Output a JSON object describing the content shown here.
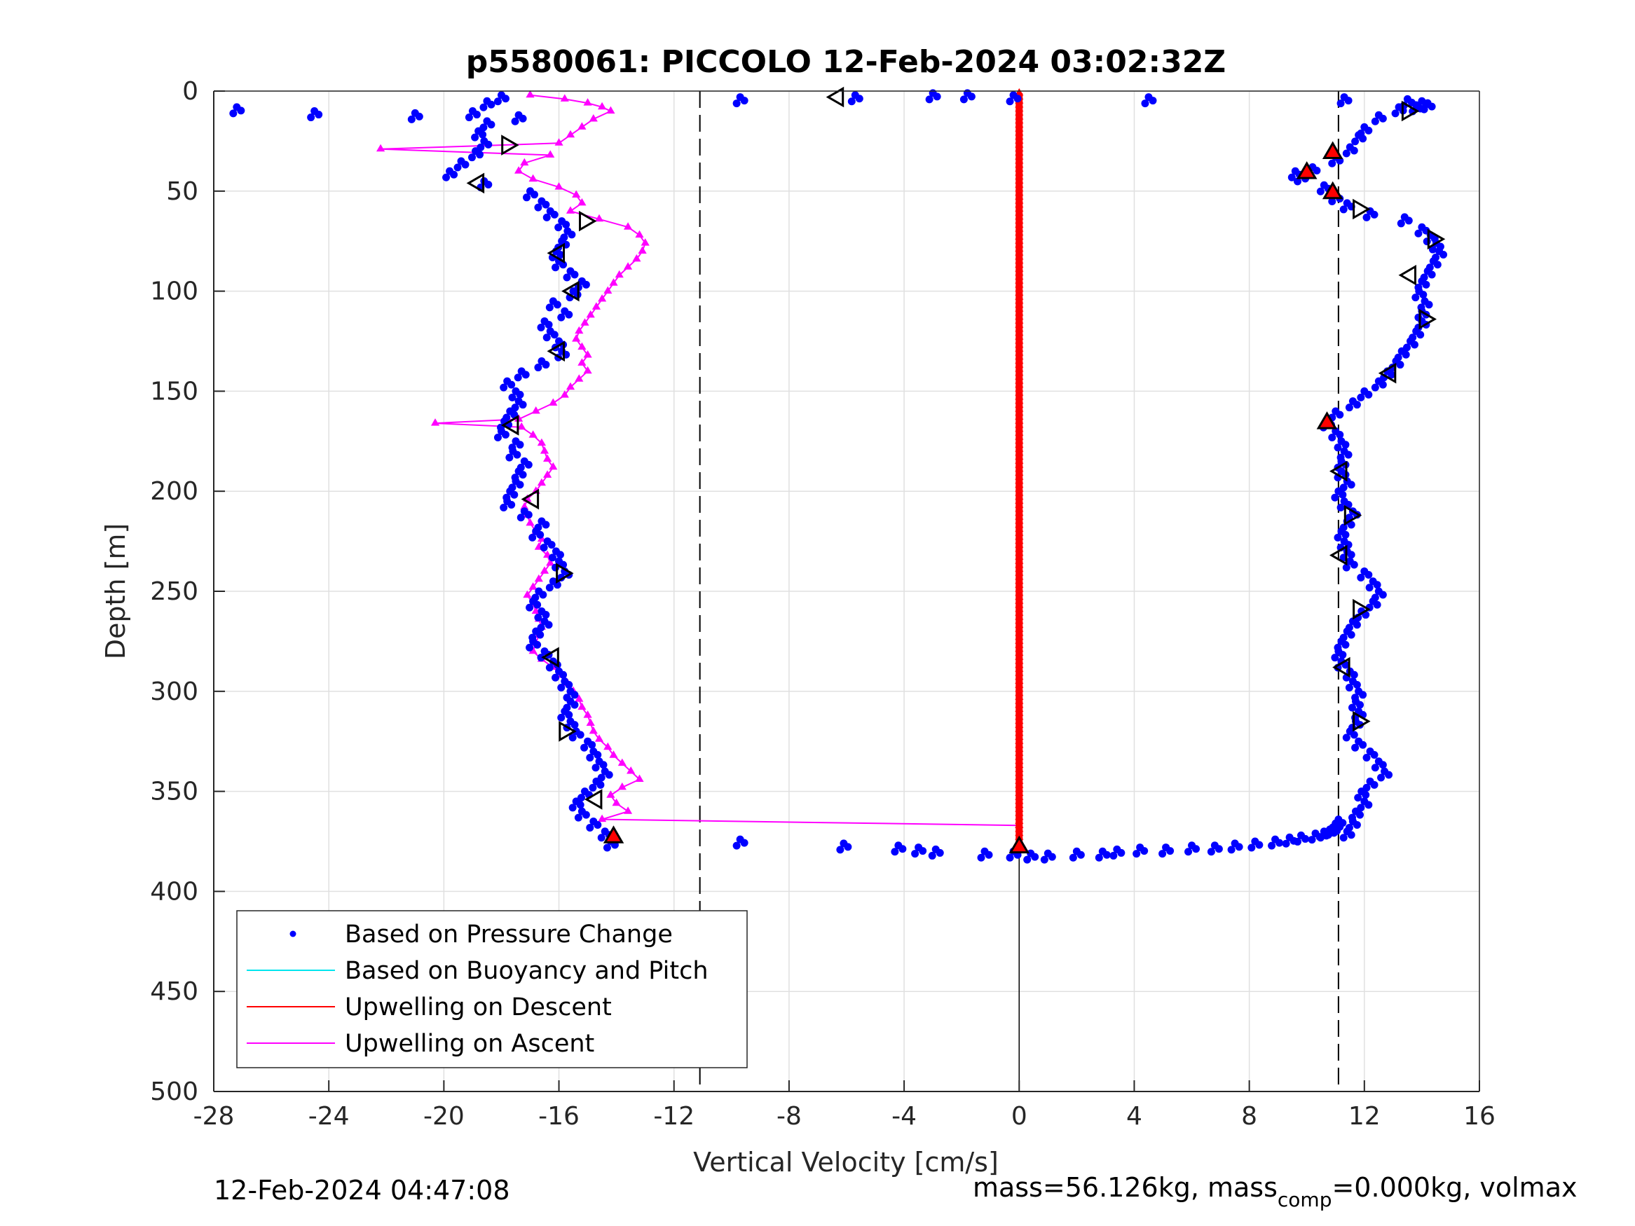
{
  "chart_data": {
    "type": "scatter",
    "title": "p5580061: PICCOLO 12-Feb-2024 03:02:32Z",
    "xlabel": "Vertical Velocity [cm/s]",
    "ylabel": "Depth [m]",
    "xlim": [
      -28,
      16
    ],
    "ylim": [
      0,
      500
    ],
    "y_reversed": true,
    "grid": true,
    "x_ticks": [
      -28,
      -24,
      -20,
      -16,
      -12,
      -8,
      -4,
      0,
      4,
      8,
      12,
      16
    ],
    "y_ticks": [
      0,
      50,
      100,
      150,
      200,
      250,
      300,
      350,
      400,
      450,
      500
    ],
    "x_tick_labels": [
      "-28",
      "-24",
      "-20",
      "-16",
      "-12",
      "-8",
      "-4",
      "0",
      "4",
      "8",
      "12",
      "16"
    ],
    "y_tick_labels": [
      "0",
      "50",
      "100",
      "150",
      "200",
      "250",
      "300",
      "350",
      "400",
      "450",
      "500"
    ],
    "legend_position": "bottom-left",
    "legend": [
      {
        "label": "Based on Pressure Change",
        "color": "#0000ff",
        "style": "dot"
      },
      {
        "label": "Based on Buoyancy and Pitch",
        "color": "#00e5ee",
        "style": "line"
      },
      {
        "label": "Upwelling on Descent",
        "color": "#ff0000",
        "style": "line"
      },
      {
        "label": "Upwelling on Ascent",
        "color": "#ff00ff",
        "style": "line"
      }
    ],
    "dashed_lines_x": [
      -11.1,
      11.1
    ],
    "zero_line_x": 0,
    "series": [
      {
        "name": "Based on Pressure Change",
        "color": "#0000ff",
        "marker": "dot",
        "branches": [
          {
            "depth": [
              5,
              10,
              15,
              20,
              25,
              30,
              35,
              40,
              45,
              50,
              55,
              60,
              65,
              70,
              75,
              80,
              85,
              90,
              95,
              100,
              105,
              110,
              115,
              120,
              125,
              130,
              135,
              140,
              145,
              150,
              155,
              160,
              165,
              170,
              175,
              180,
              185,
              190,
              195,
              200,
              205,
              210,
              215,
              220,
              225,
              230,
              235,
              240,
              245,
              250,
              255,
              260,
              265,
              270,
              275,
              280,
              285,
              290,
              295,
              300,
              305,
              310,
              315,
              320,
              325,
              330,
              335,
              340,
              345,
              350,
              355,
              360,
              365,
              370,
              375
            ],
            "velocity": [
              -18.5,
              -19.0,
              -18.5,
              -18.8,
              -18.6,
              -18.9,
              -19.4,
              -19.8,
              -18.6,
              -17.0,
              -16.6,
              -16.3,
              -15.9,
              -15.7,
              -15.9,
              -16.1,
              -16.0,
              -15.6,
              -15.2,
              -15.5,
              -16.2,
              -15.8,
              -16.5,
              -16.3,
              -16.0,
              -15.9,
              -16.6,
              -17.3,
              -17.8,
              -17.5,
              -17.4,
              -17.7,
              -17.9,
              -18.0,
              -17.5,
              -17.6,
              -17.2,
              -17.4,
              -17.5,
              -17.7,
              -17.8,
              -17.2,
              -16.6,
              -16.8,
              -16.4,
              -16.1,
              -16.0,
              -15.8,
              -16.2,
              -16.7,
              -16.9,
              -16.6,
              -16.5,
              -16.8,
              -16.9,
              -16.5,
              -16.2,
              -16.0,
              -15.8,
              -15.6,
              -15.6,
              -15.8,
              -15.6,
              -15.4,
              -15.0,
              -14.8,
              -14.6,
              -14.4,
              -14.7,
              -15.1,
              -15.4,
              -15.2,
              -14.8,
              -14.4,
              -14.2
            ]
          },
          {
            "depth": [
              8,
              12,
              18,
              22,
              28,
              33,
              38,
              40,
              42,
              47,
              52,
              56,
              60,
              63,
              68,
              72,
              76,
              80,
              85,
              90,
              95,
              100,
              105,
              110,
              115,
              120,
              125,
              130,
              135,
              140,
              145,
              150,
              155,
              160,
              165,
              170,
              175,
              180,
              185,
              190,
              195,
              200,
              205,
              210,
              215,
              220,
              225,
              230,
              235,
              240,
              245,
              250,
              255,
              260,
              265,
              270,
              275,
              280,
              285,
              290,
              295,
              300,
              305,
              310,
              315,
              320,
              325,
              330,
              335,
              340,
              345,
              350,
              355,
              360,
              365,
              370
            ],
            "velocity": [
              13.2,
              12.5,
              12.0,
              11.8,
              11.5,
              11.0,
              10.2,
              9.6,
              9.8,
              10.6,
              11.0,
              11.4,
              12.2,
              13.4,
              14.0,
              14.3,
              14.5,
              14.6,
              14.4,
              14.2,
              14.0,
              13.9,
              14.1,
              14.0,
              14.0,
              13.8,
              13.6,
              13.3,
              13.1,
              12.8,
              12.5,
              12.0,
              11.6,
              11.0,
              10.7,
              11.0,
              11.2,
              11.3,
              11.2,
              11.2,
              11.4,
              11.1,
              11.3,
              11.6,
              11.4,
              11.2,
              11.3,
              11.4,
              11.5,
              12.0,
              12.3,
              12.5,
              12.3,
              11.9,
              11.6,
              11.4,
              11.2,
              11.1,
              11.2,
              11.5,
              11.6,
              11.8,
              11.7,
              11.8,
              11.7,
              11.5,
              11.8,
              12.2,
              12.5,
              12.7,
              12.2,
              11.9,
              12.0,
              11.7,
              11.6,
              11.4
            ]
          },
          {
            "depth": [
              2,
              3,
              2,
              1,
              1,
              2,
              3,
              3,
              4,
              5,
              6,
              7,
              8,
              10,
              11,
              12
            ],
            "velocity": [
              -18.0,
              -9.7,
              -5.7,
              -3.0,
              -1.8,
              -0.2,
              4.5,
              11.3,
              13.5,
              14.0,
              14.2,
              13.8,
              -27.2,
              -24.5,
              -21.0,
              -17.4
            ]
          },
          {
            "depth": [
              374,
              376,
              377,
              378,
              379,
              380,
              380,
              381,
              381,
              380,
              380,
              379,
              378,
              378,
              377,
              377,
              376,
              375,
              374,
              373,
              372,
              371,
              370,
              369,
              368,
              366,
              364
            ],
            "velocity": [
              -9.7,
              -6.1,
              -4.2,
              -3.5,
              -2.9,
              -1.2,
              -0.2,
              0.4,
              1.0,
              2.0,
              2.9,
              3.4,
              4.2,
              5.1,
              6.0,
              6.8,
              7.5,
              8.2,
              8.9,
              9.4,
              9.8,
              10.3,
              10.6,
              10.8,
              10.9,
              11.0,
              11.1
            ]
          }
        ]
      },
      {
        "name": "Upwelling on Descent",
        "color": "#ff0000",
        "marker": "triangle",
        "x": [
          0,
          0
        ],
        "y": [
          1,
          378
        ]
      },
      {
        "name": "Upwelling on Ascent",
        "color": "#ff00ff",
        "marker": "triangle",
        "depth": [
          2,
          4,
          6,
          8,
          10,
          14,
          18,
          22,
          26,
          29,
          32,
          36,
          40,
          44,
          48,
          52,
          56,
          60,
          64,
          68,
          72,
          76,
          80,
          84,
          88,
          92,
          96,
          100,
          104,
          108,
          112,
          116,
          120,
          124,
          128,
          132,
          136,
          140,
          144,
          148,
          152,
          156,
          160,
          164,
          166,
          168,
          172,
          176,
          180,
          184,
          188,
          192,
          196,
          200,
          204,
          208,
          212,
          216,
          220,
          224,
          228,
          232,
          236,
          240,
          244,
          248,
          252,
          256,
          260,
          264,
          268,
          272,
          276,
          280,
          284,
          288,
          292,
          296,
          300,
          304,
          308,
          312,
          316,
          320,
          324,
          328,
          332,
          336,
          340,
          344,
          348,
          352,
          356,
          360,
          364,
          367
        ],
        "velocity": [
          -17.0,
          -15.8,
          -15.0,
          -14.5,
          -14.2,
          -14.8,
          -15.2,
          -15.6,
          -16.0,
          -22.2,
          -16.3,
          -17.2,
          -17.4,
          -16.9,
          -16.0,
          -15.4,
          -15.2,
          -15.6,
          -14.6,
          -13.6,
          -13.2,
          -13.0,
          -13.1,
          -13.3,
          -13.6,
          -13.9,
          -14.1,
          -14.3,
          -14.5,
          -14.7,
          -14.9,
          -15.1,
          -15.3,
          -15.4,
          -15.2,
          -15.0,
          -15.2,
          -15.0,
          -15.3,
          -15.6,
          -15.8,
          -16.2,
          -16.8,
          -17.4,
          -20.3,
          -17.3,
          -16.9,
          -16.6,
          -16.5,
          -16.4,
          -16.2,
          -16.4,
          -16.6,
          -16.8,
          -17.1,
          -17.2,
          -17.1,
          -17.0,
          -16.8,
          -16.6,
          -16.7,
          -16.4,
          -16.3,
          -16.5,
          -16.7,
          -16.9,
          -17.1,
          -16.9,
          -16.8,
          -16.7,
          -16.6,
          -16.7,
          -16.8,
          -16.9,
          -16.6,
          -16.2,
          -15.9,
          -15.7,
          -15.5,
          -15.3,
          -15.2,
          -15.0,
          -14.9,
          -14.8,
          -14.6,
          -14.3,
          -14.1,
          -13.8,
          -13.5,
          -13.2,
          -13.8,
          -14.2,
          -14.0,
          -13.6,
          -14.5,
          0
        ]
      }
    ],
    "annotation_markers": [
      {
        "shape": "triangle-left",
        "fill": "none",
        "x": -6.3,
        "y": 3
      },
      {
        "shape": "triangle-right",
        "fill": "none",
        "x": -17.8,
        "y": 27
      },
      {
        "shape": "triangle-left",
        "fill": "none",
        "x": -18.8,
        "y": 46
      },
      {
        "shape": "triangle-right",
        "fill": "none",
        "x": -15.1,
        "y": 65
      },
      {
        "shape": "triangle-left",
        "fill": "none",
        "x": -16.0,
        "y": 81
      },
      {
        "shape": "triangle-left",
        "fill": "none",
        "x": -15.5,
        "y": 100
      },
      {
        "shape": "triangle-left",
        "fill": "none",
        "x": -16.0,
        "y": 130
      },
      {
        "shape": "triangle-left",
        "fill": "none",
        "x": -17.6,
        "y": 167
      },
      {
        "shape": "triangle-left",
        "fill": "none",
        "x": -16.9,
        "y": 204
      },
      {
        "shape": "triangle-right",
        "fill": "none",
        "x": -15.9,
        "y": 241
      },
      {
        "shape": "triangle-left",
        "fill": "none",
        "x": -16.2,
        "y": 283
      },
      {
        "shape": "triangle-right",
        "fill": "none",
        "x": -15.8,
        "y": 320
      },
      {
        "shape": "triangle-left",
        "fill": "none",
        "x": -14.7,
        "y": 354
      },
      {
        "shape": "triangle-right",
        "fill": "none",
        "x": 13.5,
        "y": 10
      },
      {
        "shape": "triangle-right",
        "fill": "none",
        "x": 11.8,
        "y": 59
      },
      {
        "shape": "triangle-right",
        "fill": "none",
        "x": 14.4,
        "y": 74
      },
      {
        "shape": "triangle-left",
        "fill": "none",
        "x": 13.6,
        "y": 92
      },
      {
        "shape": "triangle-right",
        "fill": "none",
        "x": 14.1,
        "y": 114
      },
      {
        "shape": "triangle-left",
        "fill": "none",
        "x": 12.9,
        "y": 141
      },
      {
        "shape": "triangle-left",
        "fill": "none",
        "x": 11.2,
        "y": 190
      },
      {
        "shape": "triangle-right",
        "fill": "none",
        "x": 11.5,
        "y": 212
      },
      {
        "shape": "triangle-left",
        "fill": "none",
        "x": 11.2,
        "y": 232
      },
      {
        "shape": "triangle-right",
        "fill": "none",
        "x": 11.8,
        "y": 259
      },
      {
        "shape": "triangle-left",
        "fill": "none",
        "x": 11.3,
        "y": 288
      },
      {
        "shape": "triangle-right",
        "fill": "none",
        "x": 11.8,
        "y": 315
      },
      {
        "shape": "triangle-up",
        "fill": "#ff0000",
        "x": 10.9,
        "y": 31
      },
      {
        "shape": "triangle-up",
        "fill": "#ff0000",
        "x": 10.0,
        "y": 41
      },
      {
        "shape": "triangle-up",
        "fill": "#ff0000",
        "x": 10.9,
        "y": 51
      },
      {
        "shape": "triangle-up",
        "fill": "#ff0000",
        "x": 10.7,
        "y": 166
      },
      {
        "shape": "triangle-up",
        "fill": "#ff0000",
        "x": -14.1,
        "y": 373
      },
      {
        "shape": "triangle-up",
        "fill": "#ff0000",
        "x": 0,
        "y": 378
      }
    ]
  },
  "footer": {
    "timestamp": "12-Feb-2024 04:47:08",
    "mass_prefix": "mass=56.126kg, mass",
    "mass_sub": "comp",
    "mass_suffix": "=0.000kg, volmax"
  }
}
